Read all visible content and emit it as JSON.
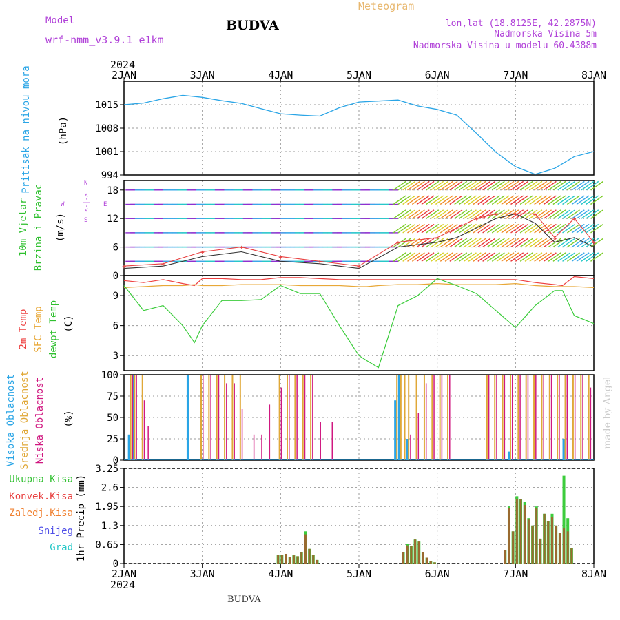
{
  "header": {
    "model_label": "Model",
    "model_name": "wrf-nmm_v3.9.1 e1km",
    "location": "BUDVA",
    "app_title": "Meteogram",
    "coords": "lon,lat (18.8125E, 42.2875N)",
    "elevation": "Nadmorska Visina 5m",
    "model_elevation": "Nadmorska Visina u modelu 60.4388m",
    "year_top": "2024",
    "year_bottom": "2024",
    "footer_location": "BUDVA",
    "watermark": "made by Angel"
  },
  "colors": {
    "pressure": "#2aa5e6",
    "temp2m": "#ee4040",
    "sfc_temp": "#e8a838",
    "dewpoint": "#3ccc3c",
    "high_cloud": "#2aa5e6",
    "mid_cloud": "#e0a838",
    "low_cloud": "#d01880",
    "total_precip": "#3ccc3c",
    "conv_precip": "#e84040",
    "grid": "#999999",
    "magenta_text": "#b040d8"
  },
  "chart_data": [
    {
      "type": "line",
      "panel": "pressure",
      "ylabel_name": "Pritisak na nivou mora",
      "ylabel_unit": "(hPa)",
      "ylim": [
        994,
        1022
      ],
      "yticks": [
        994,
        1001,
        1008,
        1015
      ],
      "xticks": [
        "2JAN",
        "3JAN",
        "4JAN",
        "5JAN",
        "6JAN",
        "7JAN",
        "8JAN"
      ],
      "grid": true,
      "x": [
        2.0,
        2.25,
        2.5,
        2.75,
        3.0,
        3.25,
        3.5,
        3.75,
        4.0,
        4.25,
        4.5,
        4.75,
        5.0,
        5.25,
        5.5,
        5.75,
        6.0,
        6.25,
        6.5,
        6.75,
        7.0,
        7.25,
        7.5,
        7.75,
        8.0
      ],
      "values": [
        1015,
        1015.5,
        1016.8,
        1017.8,
        1017.2,
        1016.2,
        1015.4,
        1013.8,
        1012.3,
        1011.9,
        1011.6,
        1014.1,
        1015.8,
        1016.1,
        1016.4,
        1014.6,
        1013.6,
        1011.9,
        1006.5,
        1000.8,
        996.5,
        994.2,
        996.0,
        999.5,
        1001.0
      ]
    },
    {
      "type": "line",
      "panel": "wind",
      "ylabel_name": "10m Vjetar",
      "ylabel_name2": "Brzina i Pravac",
      "ylabel_unit": "(m/s)",
      "direction_legend": [
        "W",
        "<-|->",
        "E",
        "S",
        "N"
      ],
      "ylim": [
        0,
        20
      ],
      "yticks": [
        0,
        6,
        12,
        18
      ],
      "grid": true,
      "x": [
        2.0,
        2.5,
        3.0,
        3.5,
        4.0,
        4.5,
        5.0,
        5.5,
        6.0,
        6.25,
        6.5,
        6.75,
        7.0,
        7.25,
        7.5,
        7.75,
        8.0
      ],
      "values": [
        1.5,
        2,
        4,
        5,
        3,
        2.5,
        1.5,
        6,
        7,
        8,
        10,
        12,
        13,
        11,
        7,
        8,
        6
      ],
      "gusts": [
        2,
        2.5,
        5,
        6,
        4,
        3,
        2,
        7,
        8,
        10,
        12,
        13,
        13,
        13,
        8,
        12,
        7
      ]
    },
    {
      "type": "line",
      "panel": "temperature",
      "ylabel_names": [
        "2m Temp",
        "SFC Temp",
        "dewpt Temp"
      ],
      "ylabel_unit": "(C)",
      "ylim": [
        1.5,
        11
      ],
      "yticks": [
        3,
        6,
        9
      ],
      "grid": true,
      "x": [
        2.0,
        2.25,
        2.5,
        2.75,
        2.9,
        3.0,
        3.25,
        3.5,
        3.75,
        4.0,
        4.25,
        4.5,
        4.75,
        5.0,
        5.1,
        5.25,
        5.5,
        5.75,
        6.0,
        6.25,
        6.5,
        6.75,
        7.0,
        7.25,
        7.5,
        7.6,
        7.75,
        8.0
      ],
      "series": [
        {
          "name": "2m Temp",
          "values": [
            10.5,
            10.3,
            10.6,
            10.2,
            10.0,
            10.7,
            10.7,
            10.6,
            10.6,
            10.8,
            10.8,
            10.7,
            10.6,
            10.6,
            10.6,
            10.6,
            10.6,
            10.6,
            10.6,
            10.6,
            10.6,
            10.6,
            10.6,
            10.3,
            10.1,
            10.0,
            10.9,
            10.7
          ]
        },
        {
          "name": "SFC Temp",
          "values": [
            9.8,
            9.9,
            10.0,
            10.0,
            10.1,
            10.0,
            10.0,
            10.1,
            10.1,
            10.1,
            10.0,
            10.0,
            10.0,
            9.9,
            9.9,
            10.0,
            10.1,
            10.1,
            10.2,
            10.1,
            10.1,
            10.1,
            10.2,
            10.0,
            9.9,
            9.9,
            9.9,
            9.8
          ]
        },
        {
          "name": "dewpt Temp",
          "values": [
            10,
            7.5,
            8.0,
            6.0,
            4.3,
            6.0,
            8.5,
            8.5,
            8.6,
            10.0,
            9.2,
            9.2,
            6.0,
            3.0,
            2.5,
            1.8,
            8.0,
            9.0,
            10.7,
            10.0,
            9.2,
            7.5,
            5.8,
            8.0,
            9.5,
            9.5,
            7.0,
            6.2
          ]
        }
      ]
    },
    {
      "type": "bar",
      "panel": "clouds",
      "ylabel_names": [
        "Visoka Oblacnost",
        "Srednja Oblacnost",
        "Niska Oblacnost"
      ],
      "ylabel_unit": "(%)",
      "ylim": [
        0,
        100
      ],
      "yticks": [
        0,
        25,
        50,
        75,
        100
      ],
      "grid": true,
      "x": [
        2.05,
        2.1,
        2.2,
        2.25,
        2.8,
        2.95,
        3.05,
        3.15,
        3.25,
        3.35,
        3.45,
        3.6,
        3.7,
        3.8,
        3.95,
        4.05,
        4.15,
        4.25,
        4.35,
        4.45,
        4.6,
        4.7,
        5.45,
        5.5,
        5.55,
        5.6,
        5.7,
        5.8,
        5.9,
        6.0,
        6.1,
        6.5,
        6.6,
        6.7,
        6.8,
        6.9,
        7.0,
        7.1,
        7.2,
        7.3,
        7.4,
        7.5,
        7.6,
        7.7,
        7.8,
        7.9
      ],
      "series": [
        {
          "name": "Visoka Oblacnost",
          "values": [
            30,
            100,
            0,
            0,
            100,
            0,
            0,
            0,
            0,
            0,
            0,
            0,
            0,
            0,
            0,
            0,
            0,
            0,
            0,
            0,
            0,
            0,
            70,
            100,
            0,
            25,
            0,
            0,
            0,
            0,
            0,
            0,
            0,
            0,
            0,
            10,
            0,
            0,
            0,
            0,
            0,
            0,
            25,
            0,
            0,
            0
          ]
        },
        {
          "name": "Srednja Oblacnost",
          "values": [
            100,
            100,
            100,
            0,
            0,
            100,
            100,
            100,
            100,
            100,
            100,
            0,
            0,
            0,
            100,
            100,
            100,
            100,
            100,
            0,
            0,
            0,
            100,
            100,
            100,
            100,
            100,
            100,
            100,
            100,
            100,
            0,
            100,
            100,
            100,
            100,
            100,
            100,
            100,
            100,
            100,
            100,
            100,
            100,
            100,
            100
          ]
        },
        {
          "name": "Niska Oblacnost",
          "values": [
            100,
            100,
            70,
            40,
            0,
            100,
            100,
            100,
            90,
            90,
            60,
            30,
            30,
            65,
            85,
            100,
            100,
            100,
            100,
            45,
            45,
            0,
            0,
            0,
            0,
            30,
            55,
            90,
            100,
            100,
            100,
            0,
            100,
            100,
            100,
            100,
            100,
            100,
            100,
            100,
            100,
            100,
            100,
            100,
            100,
            85
          ]
        }
      ]
    },
    {
      "type": "bar",
      "panel": "precip",
      "ylabel_names": [
        "Ukupna Kisa",
        "Konvek.Kisa",
        "Zaledj.Kisa",
        "Snijeg",
        "Grad"
      ],
      "ylabel_unit": "1hr Precip (mm)",
      "ylim": [
        0,
        3.25
      ],
      "yticks": [
        0,
        0.65,
        1.3,
        1.95,
        2.6,
        3.25
      ],
      "grid": true,
      "x": [
        3.95,
        4.0,
        4.05,
        4.1,
        4.15,
        4.2,
        4.25,
        4.3,
        4.35,
        4.4,
        4.45,
        5.55,
        5.6,
        5.65,
        5.7,
        5.75,
        5.8,
        5.85,
        5.9,
        5.95,
        6.85,
        6.9,
        6.95,
        7.0,
        7.05,
        7.1,
        7.15,
        7.2,
        7.25,
        7.3,
        7.35,
        7.4,
        7.45,
        7.5,
        7.55,
        7.6,
        7.65,
        7.7
      ],
      "series": [
        {
          "name": "Ukupna Kisa",
          "values": [
            0.3,
            0.3,
            0.33,
            0.22,
            0.28,
            0.25,
            0.4,
            1.1,
            0.5,
            0.3,
            0.12,
            0.38,
            0.68,
            0.6,
            0.82,
            0.75,
            0.4,
            0.2,
            0.08,
            0.04,
            0.45,
            1.95,
            1.1,
            2.3,
            2.2,
            2.1,
            1.55,
            1.3,
            1.95,
            0.85,
            1.7,
            1.45,
            1.7,
            1.3,
            1.05,
            3.0,
            1.55,
            0.52
          ]
        },
        {
          "name": "Konvek.Kisa",
          "values": [
            0.3,
            0.3,
            0.33,
            0.22,
            0.28,
            0.25,
            0.4,
            1.0,
            0.5,
            0.3,
            0.12,
            0.38,
            0.62,
            0.6,
            0.82,
            0.75,
            0.4,
            0.2,
            0.08,
            0.04,
            0.45,
            1.9,
            1.1,
            2.2,
            2.2,
            2.0,
            1.5,
            1.3,
            1.9,
            0.85,
            1.7,
            1.45,
            1.6,
            1.3,
            1.05,
            1.2,
            1.1,
            0.52
          ]
        }
      ]
    }
  ]
}
